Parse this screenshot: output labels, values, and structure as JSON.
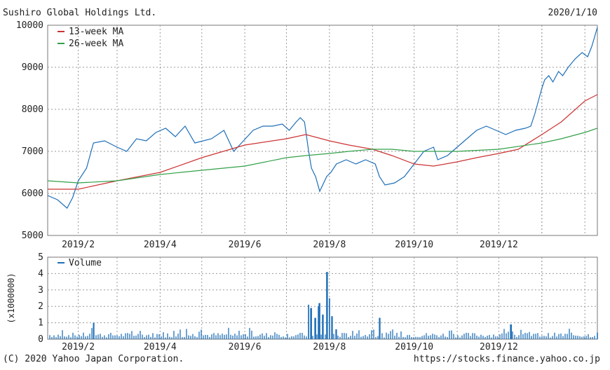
{
  "header": {
    "title": "Sushiro Global Holdings Ltd.",
    "date": "2020/1/10"
  },
  "footer": {
    "copyright": "(C) 2020 Yahoo Japan Corporation.",
    "url": "https://stocks.finance.yahoo.co.jp"
  },
  "colors": {
    "price": "#1f6fb8",
    "ma13": "#cc3333",
    "ma26": "#33a04a",
    "volume": "#1f6fb8",
    "grid": "#999999"
  },
  "chart_data": [
    {
      "type": "line",
      "title": "Sushiro Global Holdings Ltd.",
      "date_label": "2020/1/10",
      "x_ticks": [
        "2019/2",
        "2019/4",
        "2019/6",
        "2019/8",
        "2019/10",
        "2019/12"
      ],
      "y_ticks": [
        "5000",
        "6000",
        "7000",
        "8000",
        "9000",
        "10000"
      ],
      "ylim": [
        5000,
        10000
      ],
      "grid": true,
      "legend_position": "top-left",
      "series": [
        {
          "name": "price",
          "values": [
            [
              "2019/1/10",
              5950
            ],
            [
              "2019/1/17",
              5850
            ],
            [
              "2019/1/24",
              5650
            ],
            [
              "2019/1/28",
              5900
            ],
            [
              "2019/2/1",
              6300
            ],
            [
              "2019/2/7",
              6600
            ],
            [
              "2019/2/12",
              7200
            ],
            [
              "2019/2/20",
              7250
            ],
            [
              "2019/3/1",
              7100
            ],
            [
              "2019/3/8",
              7000
            ],
            [
              "2019/3/15",
              7300
            ],
            [
              "2019/3/22",
              7250
            ],
            [
              "2019/3/29",
              7450
            ],
            [
              "2019/4/5",
              7550
            ],
            [
              "2019/4/12",
              7350
            ],
            [
              "2019/4/19",
              7600
            ],
            [
              "2019/4/26",
              7200
            ],
            [
              "2019/5/8",
              7300
            ],
            [
              "2019/5/17",
              7500
            ],
            [
              "2019/5/24",
              7000
            ],
            [
              "2019/5/31",
              7250
            ],
            [
              "2019/6/7",
              7500
            ],
            [
              "2019/6/14",
              7600
            ],
            [
              "2019/6/21",
              7600
            ],
            [
              "2019/6/28",
              7650
            ],
            [
              "2019/7/3",
              7500
            ],
            [
              "2019/7/8",
              7700
            ],
            [
              "2019/7/11",
              7800
            ],
            [
              "2019/7/14",
              7700
            ],
            [
              "2019/7/17",
              7000
            ],
            [
              "2019/7/19",
              6600
            ],
            [
              "2019/7/22",
              6400
            ],
            [
              "2019/7/25",
              6050
            ],
            [
              "2019/7/30",
              6400
            ],
            [
              "2019/8/2",
              6500
            ],
            [
              "2019/8/6",
              6700
            ],
            [
              "2019/8/13",
              6800
            ],
            [
              "2019/8/20",
              6700
            ],
            [
              "2019/8/27",
              6800
            ],
            [
              "2019/9/3",
              6700
            ],
            [
              "2019/9/6",
              6400
            ],
            [
              "2019/9/10",
              6200
            ],
            [
              "2019/9/17",
              6250
            ],
            [
              "2019/9/24",
              6400
            ],
            [
              "2019/10/1",
              6700
            ],
            [
              "2019/10/8",
              7000
            ],
            [
              "2019/10/15",
              7100
            ],
            [
              "2019/10/18",
              6800
            ],
            [
              "2019/10/25",
              6900
            ],
            [
              "2019/11/1",
              7100
            ],
            [
              "2019/11/8",
              7300
            ],
            [
              "2019/11/15",
              7500
            ],
            [
              "2019/11/22",
              7600
            ],
            [
              "2019/11/29",
              7500
            ],
            [
              "2019/12/6",
              7400
            ],
            [
              "2019/12/13",
              7500
            ],
            [
              "2019/12/20",
              7550
            ],
            [
              "2019/12/24",
              7600
            ],
            [
              "2019/12/27",
              7900
            ],
            [
              "2020/1/1",
              8500
            ],
            [
              "2020/1/3",
              8700
            ],
            [
              "2020/1/6",
              8800
            ],
            [
              "2020/1/9",
              8650
            ],
            [
              "2020/1/13",
              8900
            ],
            [
              "2020/1/16",
              8800
            ],
            [
              "2020/1/20",
              9000
            ],
            [
              "2020/1/25",
              9200
            ],
            [
              "2020/1/30",
              9350
            ],
            [
              "2020/2/3",
              9250
            ],
            [
              "2020/2/6",
              9500
            ],
            [
              "2020/2/10",
              9950
            ]
          ]
        },
        {
          "name": "13-week MA",
          "values": [
            [
              "2019/1/10",
              6100
            ],
            [
              "2019/2/1",
              6100
            ],
            [
              "2019/3/1",
              6300
            ],
            [
              "2019/4/1",
              6500
            ],
            [
              "2019/5/1",
              6850
            ],
            [
              "2019/6/1",
              7150
            ],
            [
              "2019/7/1",
              7300
            ],
            [
              "2019/7/15",
              7400
            ],
            [
              "2019/8/1",
              7250
            ],
            [
              "2019/8/15",
              7150
            ],
            [
              "2019/9/1",
              7050
            ],
            [
              "2019/9/15",
              6900
            ],
            [
              "2019/10/1",
              6700
            ],
            [
              "2019/10/15",
              6650
            ],
            [
              "2019/11/1",
              6750
            ],
            [
              "2019/11/15",
              6850
            ],
            [
              "2019/12/1",
              6950
            ],
            [
              "2019/12/15",
              7050
            ],
            [
              "2020/1/1",
              7400
            ],
            [
              "2020/1/15",
              7700
            ],
            [
              "2020/2/1",
              8200
            ],
            [
              "2020/2/10",
              8350
            ]
          ]
        },
        {
          "name": "26-week MA",
          "values": [
            [
              "2019/1/10",
              6300
            ],
            [
              "2019/2/1",
              6250
            ],
            [
              "2019/3/1",
              6300
            ],
            [
              "2019/4/1",
              6450
            ],
            [
              "2019/5/1",
              6550
            ],
            [
              "2019/6/1",
              6650
            ],
            [
              "2019/7/1",
              6850
            ],
            [
              "2019/7/15",
              6900
            ],
            [
              "2019/8/1",
              6950
            ],
            [
              "2019/8/15",
              7000
            ],
            [
              "2019/9/1",
              7050
            ],
            [
              "2019/9/15",
              7050
            ],
            [
              "2019/10/1",
              7000
            ],
            [
              "2019/11/1",
              7000
            ],
            [
              "2019/12/1",
              7050
            ],
            [
              "2020/1/1",
              7200
            ],
            [
              "2020/1/15",
              7300
            ],
            [
              "2020/2/1",
              7450
            ],
            [
              "2020/2/10",
              7550
            ]
          ]
        }
      ],
      "legend": [
        "13-week MA",
        "26-week MA"
      ]
    },
    {
      "type": "bar",
      "x_ticks": [
        "2019/2",
        "2019/4",
        "2019/6",
        "2019/8",
        "2019/10",
        "2019/12"
      ],
      "y_ticks": [
        "0",
        "1",
        "2",
        "3",
        "4",
        "5"
      ],
      "ylim": [
        0,
        5
      ],
      "y_unit": "(x1000000)",
      "grid": true,
      "legend": [
        "Volume"
      ],
      "spikes": [
        [
          "2019/2/12",
          1.0
        ],
        [
          "2019/7/17",
          2.1
        ],
        [
          "2019/7/19",
          1.9
        ],
        [
          "2019/7/22",
          1.3
        ],
        [
          "2019/7/24",
          2.0
        ],
        [
          "2019/7/25",
          2.2
        ],
        [
          "2019/7/27",
          1.5
        ],
        [
          "2019/7/30",
          4.1
        ],
        [
          "2019/8/1",
          2.5
        ],
        [
          "2019/8/3",
          1.4
        ],
        [
          "2019/8/6",
          0.6
        ],
        [
          "2019/9/6",
          1.3
        ],
        [
          "2019/12/10",
          0.9
        ],
        [
          "2020/2/10",
          0.4
        ]
      ],
      "baseline_range": [
        0.1,
        0.4
      ]
    }
  ]
}
